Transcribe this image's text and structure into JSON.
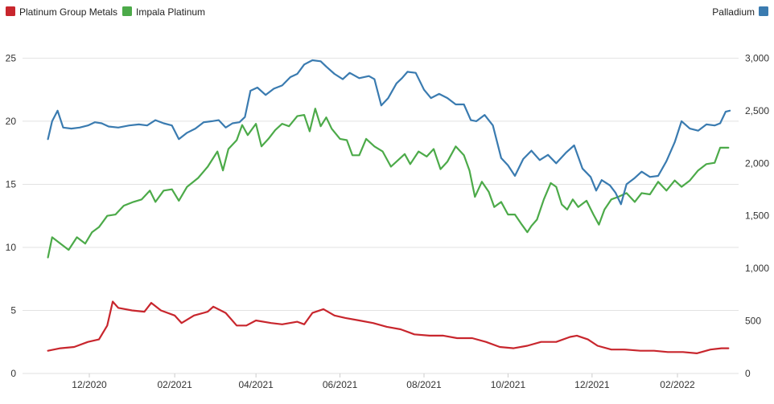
{
  "chart_data": {
    "type": "line",
    "title": "",
    "xlabel": "",
    "ylabel": "",
    "legend_placement": "top",
    "grid": true,
    "legend": [
      {
        "label": "Platinum Group Metals",
        "color": "#c8262d",
        "axis": "left"
      },
      {
        "label": "Impala Platinum",
        "color": "#4caa49",
        "axis": "left"
      },
      {
        "label": "Palladium",
        "color": "#3a7bb0",
        "axis": "right"
      }
    ],
    "x_ticks": [
      "12/2020",
      "02/2021",
      "04/2021",
      "06/2021",
      "08/2021",
      "10/2021",
      "12/2021",
      "02/2022"
    ],
    "x_tick_dates": [
      "2020-12-01",
      "2021-02-01",
      "2021-04-01",
      "2021-06-01",
      "2021-08-01",
      "2021-10-01",
      "2021-12-01",
      "2022-02-01"
    ],
    "xlim": [
      "2020-10-29",
      "2022-03-15"
    ],
    "y_left": {
      "ticks": [
        "0",
        "5",
        "10",
        "15",
        "20",
        "25"
      ],
      "ylim": [
        0,
        27
      ]
    },
    "y_right": {
      "ticks": [
        "0",
        "500",
        "1,000",
        "1,500",
        "2,000",
        "2,500",
        "3,000"
      ],
      "ylim": [
        0,
        3240
      ]
    },
    "series": [
      {
        "name": "Platinum Group Metals",
        "color": "#c8262d",
        "axis": "left",
        "points": [
          [
            "2020-11-01",
            1.8
          ],
          [
            "2020-11-10",
            2.0
          ],
          [
            "2020-11-20",
            2.1
          ],
          [
            "2020-11-30",
            2.5
          ],
          [
            "2020-12-08",
            2.7
          ],
          [
            "2020-12-14",
            3.8
          ],
          [
            "2020-12-18",
            5.7
          ],
          [
            "2020-12-22",
            5.2
          ],
          [
            "2021-01-01",
            5.0
          ],
          [
            "2021-01-10",
            4.9
          ],
          [
            "2021-01-15",
            5.6
          ],
          [
            "2021-01-22",
            5.0
          ],
          [
            "2021-02-01",
            4.6
          ],
          [
            "2021-02-06",
            4.0
          ],
          [
            "2021-02-15",
            4.6
          ],
          [
            "2021-02-25",
            4.9
          ],
          [
            "2021-03-01",
            5.3
          ],
          [
            "2021-03-10",
            4.8
          ],
          [
            "2021-03-18",
            3.8
          ],
          [
            "2021-03-25",
            3.8
          ],
          [
            "2021-04-01",
            4.2
          ],
          [
            "2021-04-12",
            4.0
          ],
          [
            "2021-04-20",
            3.9
          ],
          [
            "2021-05-01",
            4.1
          ],
          [
            "2021-05-06",
            3.9
          ],
          [
            "2021-05-12",
            4.8
          ],
          [
            "2021-05-20",
            5.1
          ],
          [
            "2021-05-28",
            4.6
          ],
          [
            "2021-06-05",
            4.4
          ],
          [
            "2021-06-15",
            4.2
          ],
          [
            "2021-06-25",
            4.0
          ],
          [
            "2021-07-05",
            3.7
          ],
          [
            "2021-07-15",
            3.5
          ],
          [
            "2021-07-25",
            3.1
          ],
          [
            "2021-08-05",
            3.0
          ],
          [
            "2021-08-15",
            3.0
          ],
          [
            "2021-08-25",
            2.8
          ],
          [
            "2021-09-05",
            2.8
          ],
          [
            "2021-09-15",
            2.5
          ],
          [
            "2021-09-25",
            2.1
          ],
          [
            "2021-10-05",
            2.0
          ],
          [
            "2021-10-15",
            2.2
          ],
          [
            "2021-10-25",
            2.5
          ],
          [
            "2021-11-05",
            2.5
          ],
          [
            "2021-11-15",
            2.9
          ],
          [
            "2021-11-20",
            3.0
          ],
          [
            "2021-11-28",
            2.7
          ],
          [
            "2021-12-05",
            2.2
          ],
          [
            "2021-12-15",
            1.9
          ],
          [
            "2021-12-25",
            1.9
          ],
          [
            "2022-01-05",
            1.8
          ],
          [
            "2022-01-15",
            1.8
          ],
          [
            "2022-01-25",
            1.7
          ],
          [
            "2022-02-05",
            1.7
          ],
          [
            "2022-02-15",
            1.6
          ],
          [
            "2022-02-25",
            1.9
          ],
          [
            "2022-03-05",
            2.0
          ],
          [
            "2022-03-10",
            2.0
          ]
        ]
      },
      {
        "name": "Impala Platinum",
        "color": "#4caa49",
        "axis": "left",
        "points": [
          [
            "2020-11-01",
            9.2
          ],
          [
            "2020-11-04",
            10.8
          ],
          [
            "2020-11-10",
            10.3
          ],
          [
            "2020-11-16",
            9.8
          ],
          [
            "2020-11-22",
            10.8
          ],
          [
            "2020-11-28",
            10.3
          ],
          [
            "2020-12-03",
            11.2
          ],
          [
            "2020-12-08",
            11.6
          ],
          [
            "2020-12-14",
            12.5
          ],
          [
            "2020-12-20",
            12.6
          ],
          [
            "2020-12-26",
            13.3
          ],
          [
            "2021-01-02",
            13.6
          ],
          [
            "2021-01-08",
            13.8
          ],
          [
            "2021-01-14",
            14.5
          ],
          [
            "2021-01-18",
            13.6
          ],
          [
            "2021-01-24",
            14.5
          ],
          [
            "2021-01-30",
            14.6
          ],
          [
            "2021-02-04",
            13.7
          ],
          [
            "2021-02-10",
            14.8
          ],
          [
            "2021-02-18",
            15.5
          ],
          [
            "2021-02-25",
            16.4
          ],
          [
            "2021-03-04",
            17.6
          ],
          [
            "2021-03-08",
            16.1
          ],
          [
            "2021-03-12",
            17.8
          ],
          [
            "2021-03-18",
            18.5
          ],
          [
            "2021-03-22",
            19.7
          ],
          [
            "2021-03-26",
            18.9
          ],
          [
            "2021-04-01",
            19.8
          ],
          [
            "2021-04-05",
            18.0
          ],
          [
            "2021-04-10",
            18.6
          ],
          [
            "2021-04-15",
            19.3
          ],
          [
            "2021-04-20",
            19.8
          ],
          [
            "2021-04-25",
            19.6
          ],
          [
            "2021-05-01",
            20.4
          ],
          [
            "2021-05-06",
            20.5
          ],
          [
            "2021-05-10",
            19.2
          ],
          [
            "2021-05-14",
            21.0
          ],
          [
            "2021-05-18",
            19.6
          ],
          [
            "2021-05-22",
            20.3
          ],
          [
            "2021-05-26",
            19.4
          ],
          [
            "2021-06-01",
            18.6
          ],
          [
            "2021-06-06",
            18.5
          ],
          [
            "2021-06-10",
            17.3
          ],
          [
            "2021-06-15",
            17.3
          ],
          [
            "2021-06-20",
            18.6
          ],
          [
            "2021-06-26",
            18.0
          ],
          [
            "2021-07-02",
            17.6
          ],
          [
            "2021-07-08",
            16.4
          ],
          [
            "2021-07-12",
            16.8
          ],
          [
            "2021-07-18",
            17.4
          ],
          [
            "2021-07-22",
            16.6
          ],
          [
            "2021-07-28",
            17.6
          ],
          [
            "2021-08-03",
            17.2
          ],
          [
            "2021-08-08",
            17.8
          ],
          [
            "2021-08-13",
            16.2
          ],
          [
            "2021-08-18",
            16.8
          ],
          [
            "2021-08-24",
            18.0
          ],
          [
            "2021-08-30",
            17.3
          ],
          [
            "2021-09-03",
            16.1
          ],
          [
            "2021-09-07",
            14.0
          ],
          [
            "2021-09-12",
            15.2
          ],
          [
            "2021-09-17",
            14.4
          ],
          [
            "2021-09-21",
            13.2
          ],
          [
            "2021-09-26",
            13.6
          ],
          [
            "2021-10-01",
            12.6
          ],
          [
            "2021-10-06",
            12.6
          ],
          [
            "2021-10-11",
            11.8
          ],
          [
            "2021-10-15",
            11.2
          ],
          [
            "2021-10-18",
            11.7
          ],
          [
            "2021-10-22",
            12.2
          ],
          [
            "2021-10-27",
            13.8
          ],
          [
            "2021-11-01",
            15.1
          ],
          [
            "2021-11-05",
            14.8
          ],
          [
            "2021-11-09",
            13.4
          ],
          [
            "2021-11-13",
            13.0
          ],
          [
            "2021-11-17",
            13.8
          ],
          [
            "2021-11-21",
            13.2
          ],
          [
            "2021-11-27",
            13.7
          ],
          [
            "2021-12-02",
            12.6
          ],
          [
            "2021-12-06",
            11.8
          ],
          [
            "2021-12-10",
            13.0
          ],
          [
            "2021-12-15",
            13.8
          ],
          [
            "2021-12-20",
            14.0
          ],
          [
            "2021-12-26",
            14.3
          ],
          [
            "2022-01-01",
            13.6
          ],
          [
            "2022-01-06",
            14.3
          ],
          [
            "2022-01-12",
            14.2
          ],
          [
            "2022-01-18",
            15.2
          ],
          [
            "2022-01-24",
            14.5
          ],
          [
            "2022-01-30",
            15.3
          ],
          [
            "2022-02-04",
            14.8
          ],
          [
            "2022-02-10",
            15.3
          ],
          [
            "2022-02-16",
            16.1
          ],
          [
            "2022-02-22",
            16.6
          ],
          [
            "2022-02-28",
            16.7
          ],
          [
            "2022-03-04",
            17.9
          ],
          [
            "2022-03-10",
            17.9
          ]
        ]
      },
      {
        "name": "Palladium",
        "color": "#3a7bb0",
        "axis": "right",
        "points": [
          [
            "2020-11-01",
            2230
          ],
          [
            "2020-11-04",
            2400
          ],
          [
            "2020-11-08",
            2500
          ],
          [
            "2020-11-12",
            2340
          ],
          [
            "2020-11-18",
            2330
          ],
          [
            "2020-11-24",
            2340
          ],
          [
            "2020-11-30",
            2360
          ],
          [
            "2020-12-05",
            2390
          ],
          [
            "2020-12-10",
            2380
          ],
          [
            "2020-12-15",
            2350
          ],
          [
            "2020-12-22",
            2340
          ],
          [
            "2020-12-30",
            2360
          ],
          [
            "2021-01-06",
            2370
          ],
          [
            "2021-01-12",
            2360
          ],
          [
            "2021-01-18",
            2410
          ],
          [
            "2021-01-24",
            2380
          ],
          [
            "2021-01-30",
            2360
          ],
          [
            "2021-02-04",
            2230
          ],
          [
            "2021-02-10",
            2290
          ],
          [
            "2021-02-16",
            2330
          ],
          [
            "2021-02-22",
            2390
          ],
          [
            "2021-02-28",
            2400
          ],
          [
            "2021-03-05",
            2410
          ],
          [
            "2021-03-10",
            2340
          ],
          [
            "2021-03-15",
            2380
          ],
          [
            "2021-03-20",
            2390
          ],
          [
            "2021-03-24",
            2440
          ],
          [
            "2021-03-28",
            2690
          ],
          [
            "2021-04-02",
            2720
          ],
          [
            "2021-04-08",
            2650
          ],
          [
            "2021-04-14",
            2710
          ],
          [
            "2021-04-20",
            2740
          ],
          [
            "2021-04-26",
            2820
          ],
          [
            "2021-05-01",
            2850
          ],
          [
            "2021-05-06",
            2940
          ],
          [
            "2021-05-12",
            2980
          ],
          [
            "2021-05-18",
            2970
          ],
          [
            "2021-05-22",
            2920
          ],
          [
            "2021-05-28",
            2850
          ],
          [
            "2021-06-03",
            2800
          ],
          [
            "2021-06-08",
            2860
          ],
          [
            "2021-06-15",
            2810
          ],
          [
            "2021-06-22",
            2830
          ],
          [
            "2021-06-26",
            2800
          ],
          [
            "2021-07-01",
            2550
          ],
          [
            "2021-07-06",
            2620
          ],
          [
            "2021-07-12",
            2760
          ],
          [
            "2021-07-16",
            2810
          ],
          [
            "2021-07-20",
            2870
          ],
          [
            "2021-07-26",
            2860
          ],
          [
            "2021-08-01",
            2700
          ],
          [
            "2021-08-06",
            2620
          ],
          [
            "2021-08-12",
            2660
          ],
          [
            "2021-08-18",
            2620
          ],
          [
            "2021-08-24",
            2560
          ],
          [
            "2021-08-30",
            2560
          ],
          [
            "2021-09-04",
            2410
          ],
          [
            "2021-09-08",
            2400
          ],
          [
            "2021-09-14",
            2460
          ],
          [
            "2021-09-20",
            2360
          ],
          [
            "2021-09-26",
            2050
          ],
          [
            "2021-10-01",
            1980
          ],
          [
            "2021-10-06",
            1880
          ],
          [
            "2021-10-12",
            2040
          ],
          [
            "2021-10-18",
            2120
          ],
          [
            "2021-10-24",
            2030
          ],
          [
            "2021-10-30",
            2080
          ],
          [
            "2021-11-05",
            2000
          ],
          [
            "2021-11-12",
            2100
          ],
          [
            "2021-11-18",
            2170
          ],
          [
            "2021-11-24",
            1950
          ],
          [
            "2021-11-30",
            1870
          ],
          [
            "2021-12-04",
            1740
          ],
          [
            "2021-12-08",
            1840
          ],
          [
            "2021-12-14",
            1790
          ],
          [
            "2021-12-18",
            1720
          ],
          [
            "2021-12-22",
            1610
          ],
          [
            "2021-12-26",
            1800
          ],
          [
            "2022-01-01",
            1860
          ],
          [
            "2022-01-06",
            1920
          ],
          [
            "2022-01-12",
            1870
          ],
          [
            "2022-01-18",
            1880
          ],
          [
            "2022-01-24",
            2020
          ],
          [
            "2022-01-30",
            2200
          ],
          [
            "2022-02-04",
            2400
          ],
          [
            "2022-02-10",
            2330
          ],
          [
            "2022-02-16",
            2310
          ],
          [
            "2022-02-22",
            2370
          ],
          [
            "2022-02-28",
            2360
          ],
          [
            "2022-03-04",
            2380
          ],
          [
            "2022-03-08",
            2490
          ],
          [
            "2022-03-11",
            2500
          ]
        ]
      }
    ]
  }
}
